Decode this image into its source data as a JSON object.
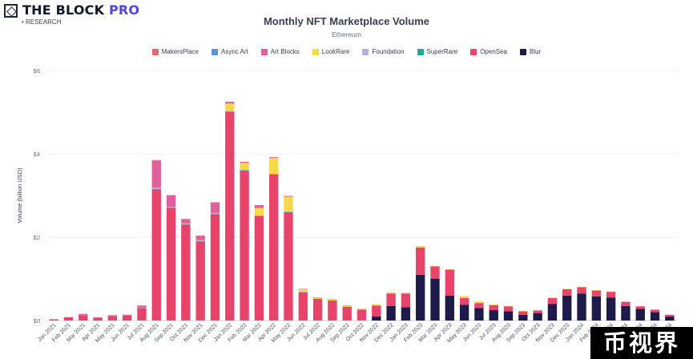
{
  "brand": {
    "name": "THE BLOCK",
    "pro": "PRO",
    "sub": "• RESEARCH"
  },
  "watermark": "币视界",
  "chart_data": {
    "type": "bar",
    "stacked": true,
    "title": "Monthly NFT Marketplace Volume",
    "subtitle": "Ethereum",
    "ylabel": "Volume (billion USD)",
    "ylim": [
      0,
      6
    ],
    "yticks": [
      "$0",
      "$2",
      "$4",
      "$6"
    ],
    "legend_position": "top",
    "categories": [
      "Jan 2021",
      "Feb 2021",
      "Mar 2021",
      "Apr 2021",
      "May 2021",
      "Jun 2021",
      "Jul 2021",
      "Aug 2021",
      "Sep 2021",
      "Oct 2021",
      "Nov 2021",
      "Dec 2021",
      "Jan 2022",
      "Feb 2022",
      "Mar 2022",
      "Apr 2022",
      "May 2022",
      "Jun 2022",
      "Jul 2022",
      "Aug 2022",
      "Sep 2022",
      "Oct 2022",
      "Nov 2022",
      "Dec 2022",
      "Jan 2023",
      "Feb 2023",
      "Mar 2023",
      "Apr 2023",
      "May 2023",
      "Jun 2023",
      "Jul 2023",
      "Aug 2023",
      "Sep 2023",
      "Oct 2023",
      "Nov 2023",
      "Dec 2023",
      "Jan 2024",
      "Feb 2024",
      "Mar 2024",
      "Apr 2024",
      "May 2024",
      "Jun 2024",
      "Jul 2024"
    ],
    "series": [
      {
        "name": "Blur",
        "color": "#1e1b4b",
        "values": [
          0,
          0,
          0,
          0,
          0,
          0,
          0,
          0,
          0,
          0,
          0,
          0,
          0,
          0,
          0,
          0,
          0,
          0,
          0,
          0,
          0,
          0,
          0.1,
          0.35,
          0.32,
          1.1,
          1.0,
          0.6,
          0.38,
          0.3,
          0.25,
          0.22,
          0.14,
          0.18,
          0.4,
          0.6,
          0.65,
          0.58,
          0.55,
          0.35,
          0.28,
          0.2,
          0.1
        ]
      },
      {
        "name": "OpenSea",
        "color": "#e8436b",
        "values": [
          0.03,
          0.08,
          0.12,
          0.06,
          0.1,
          0.12,
          0.3,
          3.15,
          2.7,
          2.3,
          1.9,
          2.55,
          5.0,
          3.6,
          2.5,
          3.5,
          2.6,
          0.68,
          0.52,
          0.48,
          0.33,
          0.26,
          0.26,
          0.3,
          0.33,
          0.65,
          0.3,
          0.62,
          0.16,
          0.12,
          0.12,
          0.12,
          0.08,
          0.06,
          0.14,
          0.15,
          0.15,
          0.14,
          0.14,
          0.1,
          0.06,
          0.06,
          0.04
        ]
      },
      {
        "name": "SuperRare",
        "color": "#22a89a",
        "values": [
          0,
          0,
          0,
          0,
          0,
          0,
          0,
          0.01,
          0.01,
          0.01,
          0.01,
          0.01,
          0.01,
          0.01,
          0.01,
          0.01,
          0.01,
          0,
          0,
          0,
          0,
          0,
          0,
          0,
          0,
          0,
          0,
          0,
          0,
          0,
          0,
          0,
          0,
          0,
          0,
          0,
          0,
          0,
          0,
          0,
          0,
          0,
          0
        ]
      },
      {
        "name": "Foundation",
        "color": "#b4b0e0",
        "values": [
          0,
          0,
          0,
          0,
          0,
          0,
          0.01,
          0.03,
          0.02,
          0.02,
          0.02,
          0.02,
          0.02,
          0.02,
          0.01,
          0.01,
          0.01,
          0.01,
          0,
          0,
          0,
          0,
          0,
          0,
          0,
          0,
          0,
          0,
          0,
          0,
          0,
          0,
          0,
          0,
          0,
          0,
          0,
          0,
          0,
          0,
          0,
          0,
          0
        ]
      },
      {
        "name": "LookRare",
        "color": "#f6d94a",
        "values": [
          0,
          0,
          0,
          0,
          0,
          0,
          0,
          0,
          0,
          0,
          0,
          0,
          0.18,
          0.15,
          0.18,
          0.38,
          0.35,
          0.06,
          0.03,
          0.02,
          0.02,
          0.03,
          0.03,
          0.03,
          0.02,
          0.04,
          0.01,
          0.01,
          0.05,
          0.04,
          0.02,
          0.01,
          0.01,
          0.01,
          0.01,
          0.01,
          0.01,
          0.01,
          0.01,
          0,
          0,
          0,
          0
        ]
      },
      {
        "name": "Art Blocks",
        "color": "#e0609b",
        "values": [
          0,
          0,
          0.04,
          0.02,
          0.03,
          0.02,
          0.05,
          0.65,
          0.27,
          0.1,
          0.1,
          0.25,
          0.03,
          0.02,
          0.07,
          0.02,
          0.02,
          0.01,
          0.01,
          0.01,
          0.01,
          0,
          0,
          0,
          0,
          0,
          0,
          0,
          0,
          0,
          0,
          0,
          0,
          0,
          0,
          0,
          0,
          0,
          0,
          0,
          0,
          0,
          0
        ]
      },
      {
        "name": "Async Art",
        "color": "#5b8fe0",
        "values": [
          0,
          0,
          0,
          0,
          0,
          0,
          0,
          0,
          0,
          0,
          0,
          0,
          0,
          0,
          0,
          0,
          0,
          0,
          0,
          0,
          0,
          0,
          0,
          0,
          0,
          0,
          0,
          0,
          0,
          0,
          0,
          0,
          0,
          0,
          0,
          0,
          0,
          0,
          0,
          0,
          0,
          0,
          0
        ]
      },
      {
        "name": "MakersPlace",
        "color": "#e36a6a",
        "values": [
          0,
          0,
          0,
          0,
          0,
          0,
          0,
          0.01,
          0.01,
          0.01,
          0.01,
          0.01,
          0.01,
          0.01,
          0,
          0,
          0,
          0,
          0,
          0,
          0,
          0,
          0,
          0,
          0,
          0,
          0,
          0,
          0,
          0,
          0,
          0,
          0,
          0,
          0,
          0,
          0,
          0,
          0,
          0,
          0,
          0,
          0
        ]
      }
    ],
    "legend": [
      {
        "name": "MakersPlace",
        "color": "#e36a6a"
      },
      {
        "name": "Async Art",
        "color": "#5b8fe0"
      },
      {
        "name": "Art Blocks",
        "color": "#e0609b"
      },
      {
        "name": "LookRare",
        "color": "#f6d94a"
      },
      {
        "name": "Foundation",
        "color": "#b4b0e0"
      },
      {
        "name": "SuperRare",
        "color": "#22a89a"
      },
      {
        "name": "OpenSea",
        "color": "#e8436b"
      },
      {
        "name": "Blur",
        "color": "#1e1b4b"
      }
    ]
  }
}
